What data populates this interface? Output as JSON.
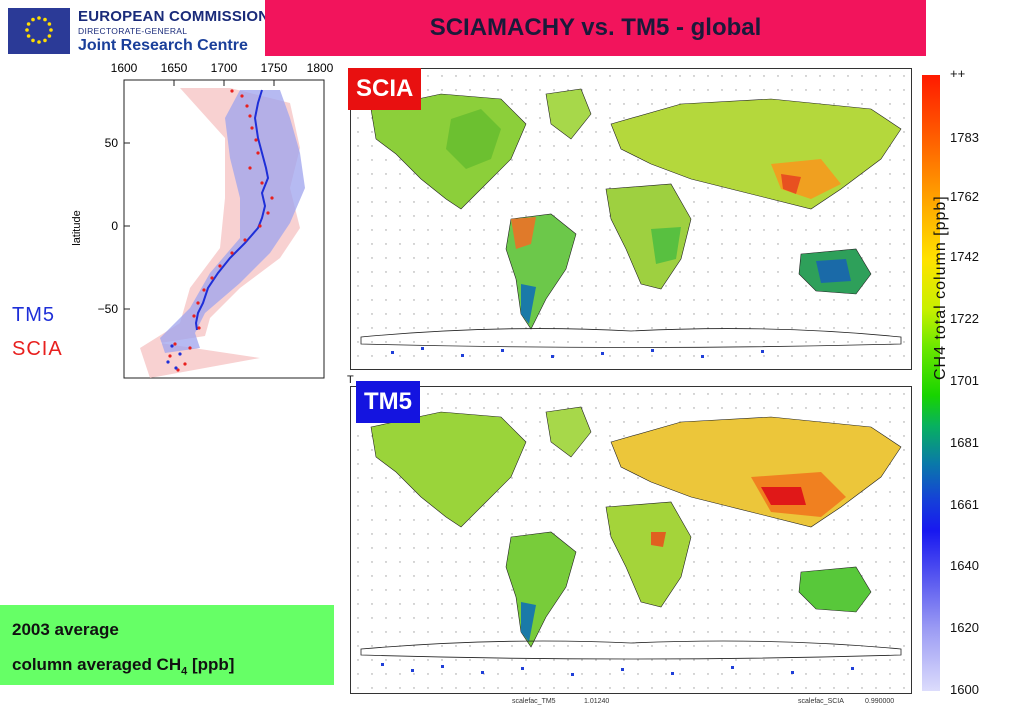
{
  "header": {
    "org_line1": "EUROPEAN COMMISSION",
    "org_line2": "DIRECTORATE-GENERAL",
    "org_line3": "Joint Research Centre",
    "title": "SCIAMACHY vs. TM5 - global"
  },
  "profile": {
    "x_ticks": [
      "1600",
      "1650",
      "1700",
      "1750",
      "1800"
    ],
    "y_ticks": [
      "50",
      "0",
      "−50"
    ],
    "ylabel": "latitude",
    "legend_tm5": "TM5",
    "legend_scia": "SCIA"
  },
  "maps": {
    "scia_label": "SCIA",
    "tm5_label": "TM5",
    "t_mark": "T",
    "footer_tm5_name": "scalefac_TM5",
    "footer_tm5_value": "1.01240",
    "footer_scia_name": "scalefac_SCIA",
    "footer_scia_value": "0.990000"
  },
  "colorbar": {
    "ticks": [
      "++",
      "1783",
      "1762",
      "1742",
      "1722",
      "1701",
      "1681",
      "1661",
      "1640",
      "1620",
      "1600"
    ],
    "label": "CH4 total column [ppb]"
  },
  "info": {
    "line1": "2003 average",
    "line2_main": "column averaged CH",
    "line2_sub": "4",
    "line2_unit": " [ppb]"
  },
  "colors": {
    "title_bar": "#f2145c",
    "scia": "#e81010",
    "tm5": "#1414e0",
    "info_box": "#66ff66"
  }
}
